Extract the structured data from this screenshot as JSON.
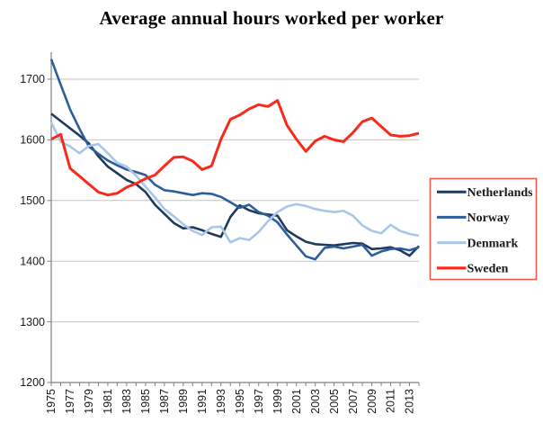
{
  "title": "Average annual hours worked per worker",
  "legend": {
    "position": "right",
    "entries": [
      "Netherlands",
      "Norway",
      "Denmark",
      "Sweden"
    ]
  },
  "colors": {
    "netherlands": "#1F3B5C",
    "norway": "#2E5D9C",
    "denmark": "#A9C6E9",
    "sweden": "#FB291C",
    "gridline": "#C3C3C3",
    "axis": "#808080",
    "tick_text": "#1A1A1A",
    "title_text": "#000000",
    "legend_border": "#EE5A4B",
    "background": "#FFFFFF"
  },
  "chart_data": {
    "type": "line",
    "title": "Average annual hours worked per worker",
    "xlabel": "",
    "ylabel": "",
    "grid": "horizontal gridlines every 100 hours",
    "legend_position": "right",
    "ylim": [
      1200,
      1740
    ],
    "y_ticks": [
      1200,
      1300,
      1400,
      1500,
      1600,
      1700
    ],
    "x": [
      1975,
      1976,
      1977,
      1978,
      1979,
      1980,
      1981,
      1982,
      1983,
      1984,
      1985,
      1986,
      1987,
      1988,
      1989,
      1990,
      1991,
      1992,
      1993,
      1994,
      1995,
      1996,
      1997,
      1998,
      1999,
      2000,
      2001,
      2002,
      2003,
      2004,
      2005,
      2006,
      2007,
      2008,
      2009,
      2010,
      2011,
      2012,
      2013,
      2014
    ],
    "x_tick_labels": [
      "1975",
      "1977",
      "1979",
      "1981",
      "1983",
      "1985",
      "1987",
      "1989",
      "1991",
      "1993",
      "1995",
      "1997",
      "1999",
      "2001",
      "2003",
      "2005",
      "2007",
      "2009",
      "2011",
      "2013"
    ],
    "series": [
      {
        "name": "Netherlands",
        "color": "#1F3B5C",
        "values": [
          1643,
          1631,
          1619,
          1607,
          1594,
          1573,
          1556,
          1545,
          1534,
          1527,
          1514,
          1493,
          1478,
          1463,
          1454,
          1456,
          1451,
          1445,
          1440,
          1473,
          1492,
          1484,
          1479,
          1477,
          1475,
          1451,
          1441,
          1432,
          1428,
          1427,
          1426,
          1428,
          1430,
          1429,
          1420,
          1421,
          1423,
          1418,
          1409,
          1425
        ]
      },
      {
        "name": "Norway",
        "color": "#2E5D9C",
        "values": [
          1733,
          1691,
          1650,
          1618,
          1589,
          1577,
          1566,
          1558,
          1551,
          1547,
          1542,
          1526,
          1517,
          1515,
          1512,
          1509,
          1512,
          1511,
          1506,
          1497,
          1488,
          1493,
          1481,
          1475,
          1464,
          1444,
          1426,
          1408,
          1403,
          1422,
          1424,
          1421,
          1424,
          1427,
          1409,
          1416,
          1420,
          1421,
          1418,
          1423
        ]
      },
      {
        "name": "Denmark",
        "color": "#A9C6E9",
        "values": [
          1629,
          1597,
          1589,
          1578,
          1590,
          1593,
          1578,
          1562,
          1556,
          1541,
          1523,
          1505,
          1486,
          1474,
          1461,
          1450,
          1443,
          1456,
          1457,
          1431,
          1438,
          1435,
          1448,
          1466,
          1481,
          1490,
          1494,
          1491,
          1486,
          1483,
          1481,
          1483,
          1475,
          1459,
          1450,
          1446,
          1460,
          1450,
          1445,
          1442
        ]
      },
      {
        "name": "Sweden",
        "color": "#FB291C",
        "values": [
          1601,
          1609,
          1553,
          1540,
          1527,
          1514,
          1509,
          1512,
          1522,
          1528,
          1536,
          1542,
          1557,
          1571,
          1572,
          1565,
          1551,
          1557,
          1601,
          1634,
          1641,
          1651,
          1658,
          1655,
          1665,
          1624,
          1601,
          1581,
          1598,
          1606,
          1600,
          1597,
          1612,
          1630,
          1636,
          1622,
          1608,
          1606,
          1607,
          1611
        ]
      }
    ]
  }
}
